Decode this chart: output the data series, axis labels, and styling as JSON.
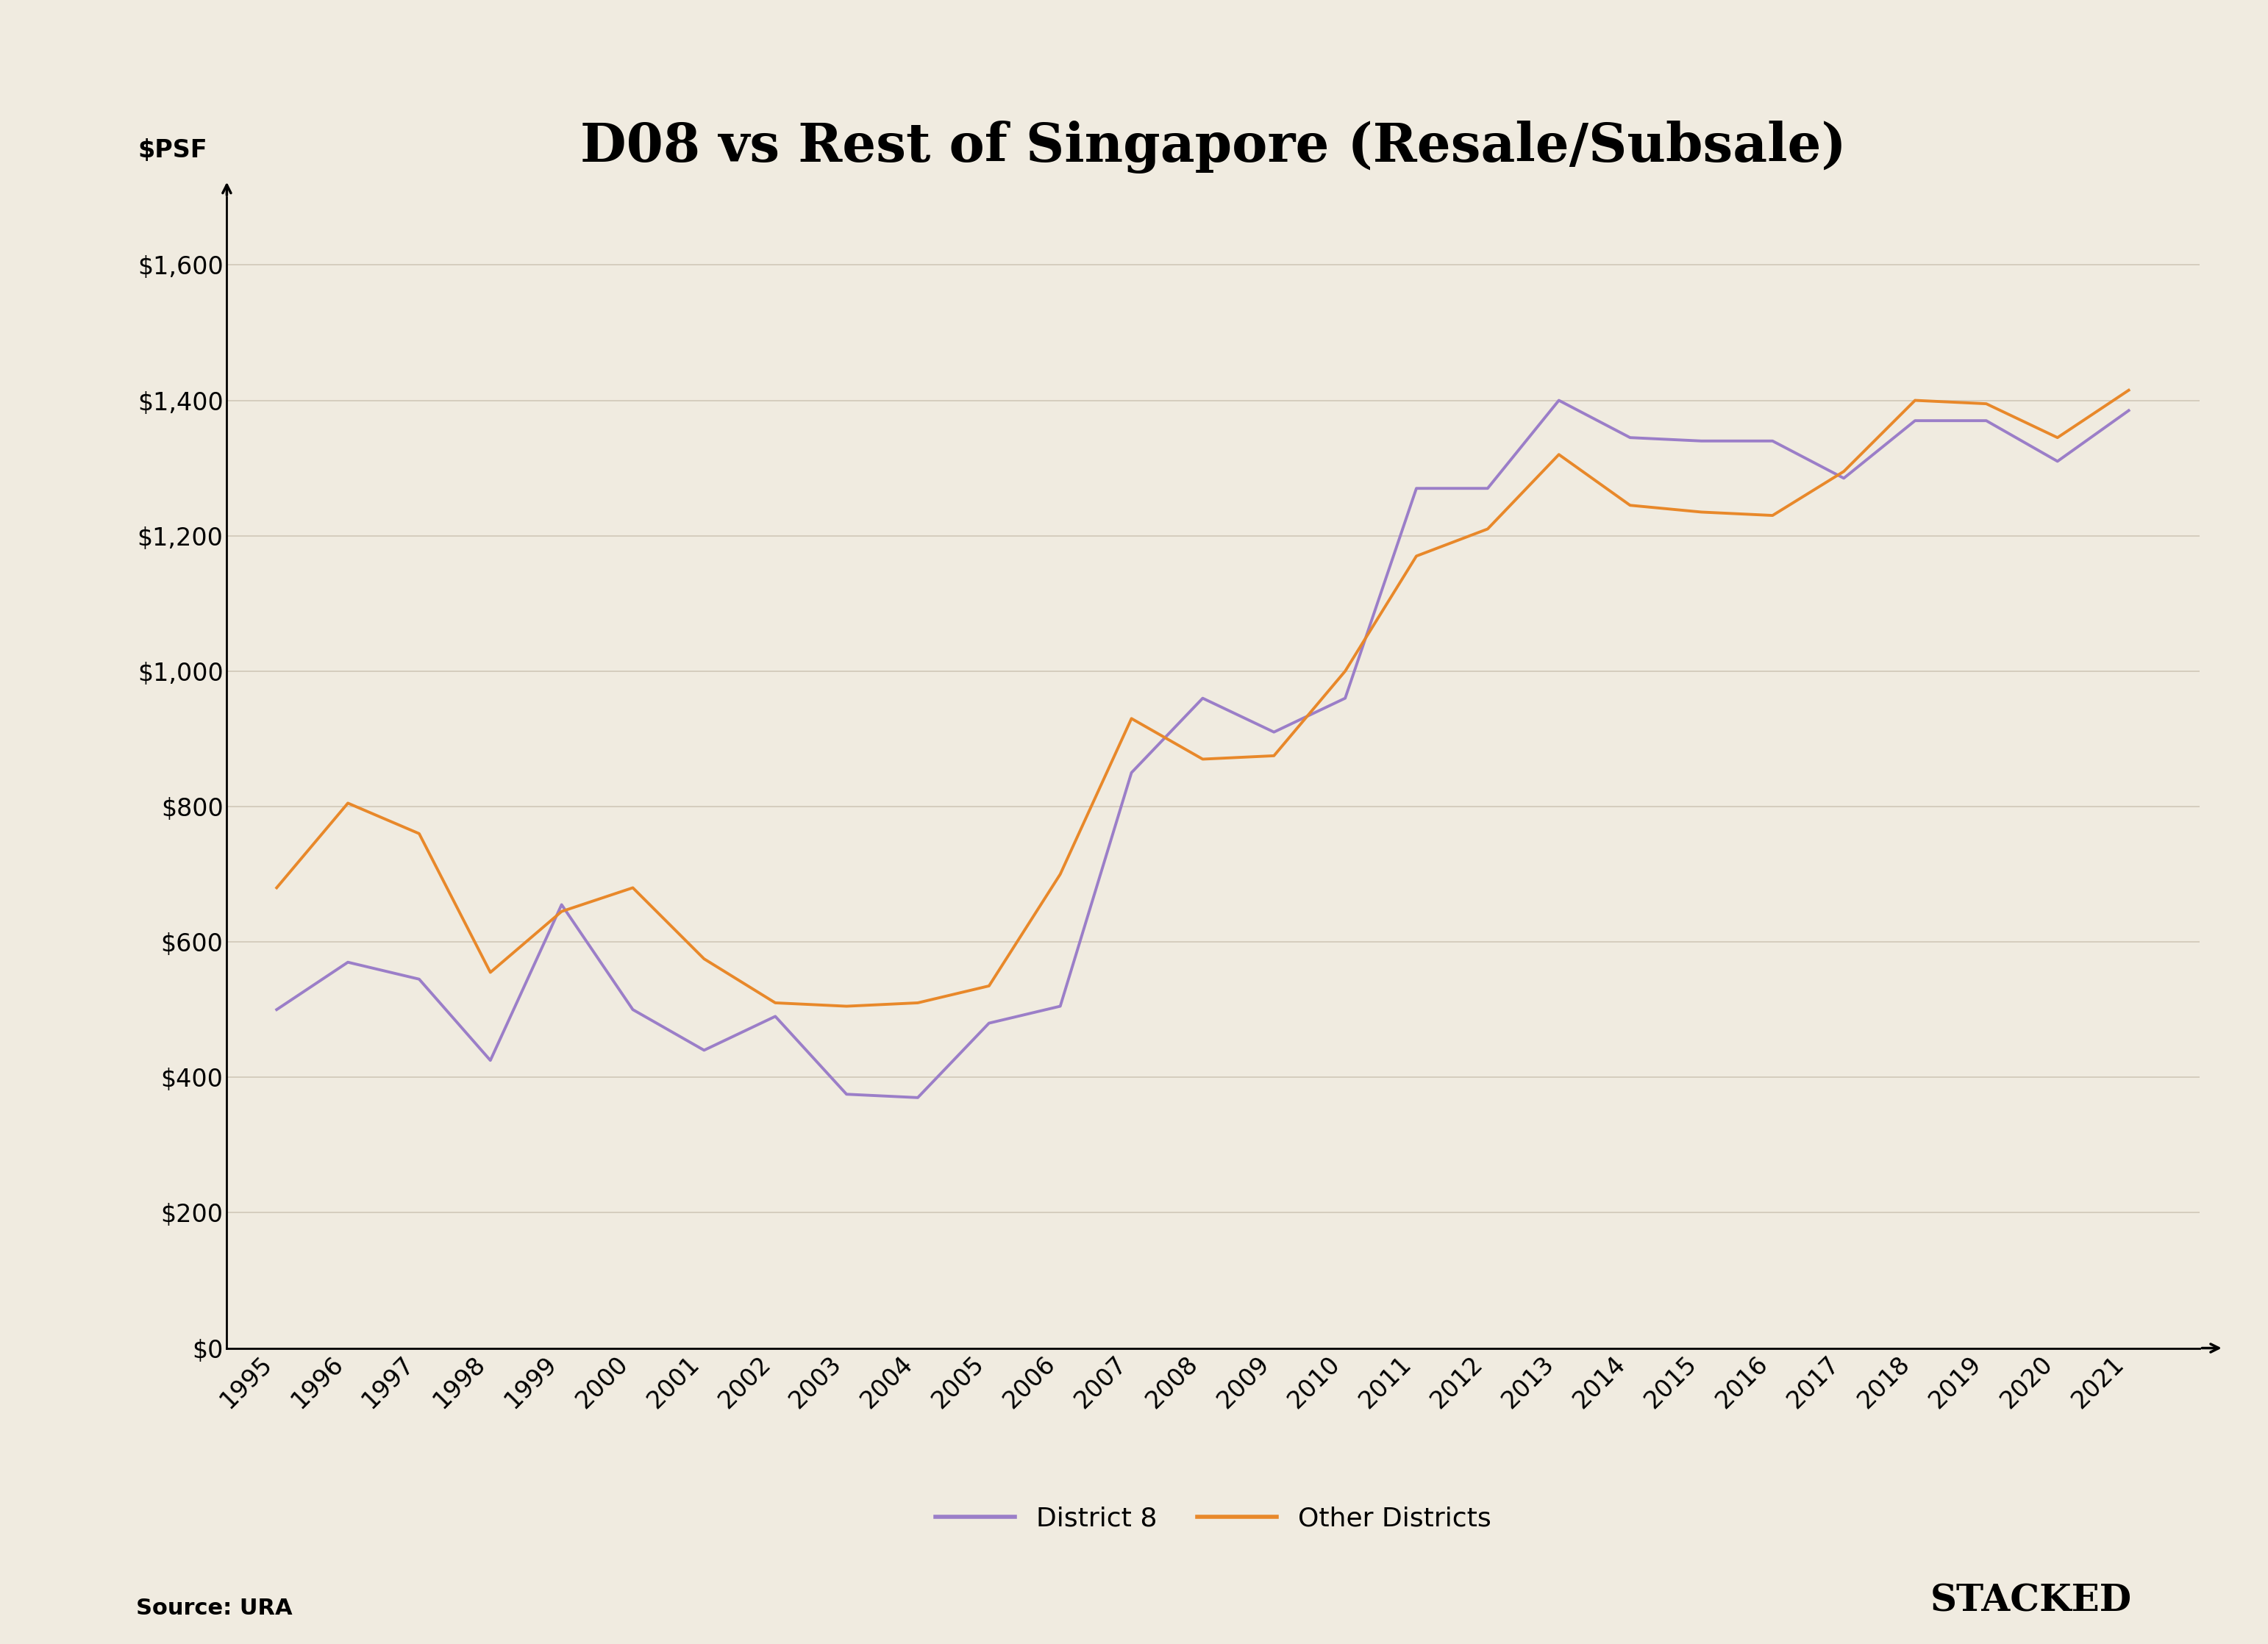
{
  "title": "D08 vs Rest of Singapore (Resale/Subsale)",
  "ylabel": "$PSF",
  "background_color": "#f0ebe0",
  "grid_color": "#d0c8b8",
  "years": [
    1995,
    1996,
    1997,
    1998,
    1999,
    2000,
    2001,
    2002,
    2003,
    2004,
    2005,
    2006,
    2007,
    2008,
    2009,
    2010,
    2011,
    2012,
    2013,
    2014,
    2015,
    2016,
    2017,
    2018,
    2019,
    2020,
    2021
  ],
  "district8": [
    500,
    570,
    545,
    425,
    655,
    500,
    440,
    490,
    375,
    370,
    480,
    505,
    850,
    960,
    910,
    960,
    1270,
    1270,
    1400,
    1345,
    1340,
    1340,
    1285,
    1370,
    1370,
    1310,
    1385
  ],
  "other_districts": [
    680,
    805,
    760,
    555,
    645,
    680,
    575,
    510,
    505,
    510,
    535,
    700,
    930,
    870,
    875,
    1000,
    1170,
    1210,
    1320,
    1245,
    1235,
    1230,
    1295,
    1400,
    1395,
    1345,
    1415
  ],
  "district8_color": "#9b7ec8",
  "other_color": "#e8882a",
  "line_width": 2.8,
  "title_fontsize": 52,
  "axis_label_fontsize": 24,
  "tick_fontsize": 24,
  "legend_fontsize": 26,
  "source_fontsize": 22,
  "stacked_fontsize": 36,
  "ylim": [
    0,
    1700
  ],
  "yticks": [
    0,
    200,
    400,
    600,
    800,
    1000,
    1200,
    1400,
    1600
  ],
  "source_text": "Source: URA",
  "stacked_text": "STACKED"
}
